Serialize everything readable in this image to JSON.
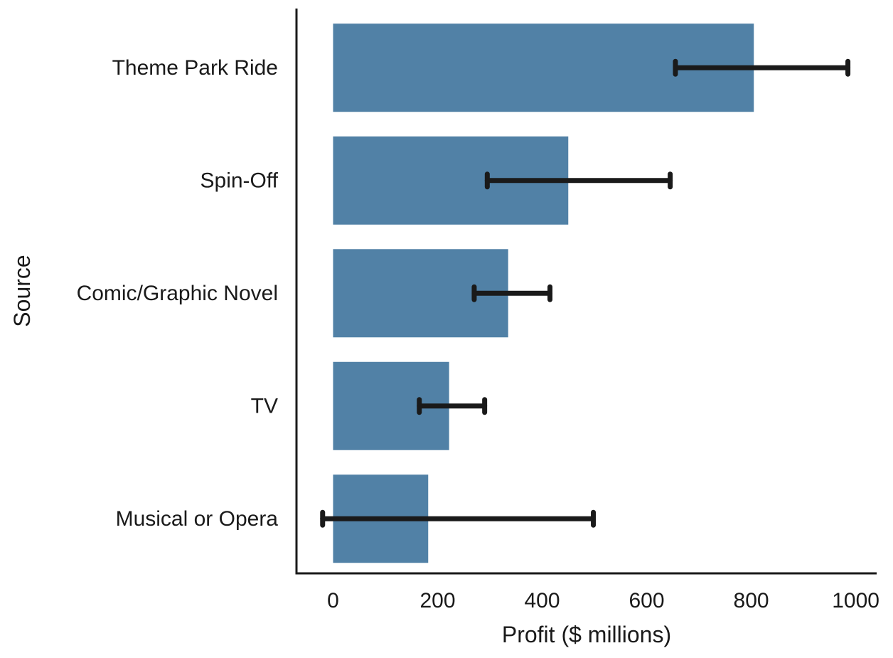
{
  "chart_data": {
    "type": "bar",
    "orientation": "horizontal",
    "title": "",
    "xlabel": "Profit ($ millions)",
    "ylabel": "Source",
    "xlim": [
      -70,
      1040
    ],
    "xticks": [
      0,
      200,
      400,
      600,
      800,
      1000
    ],
    "grid": false,
    "legend": "none",
    "bar_color": "#5181a6",
    "errorbar_color": "#1a1a1a",
    "categories": [
      "Theme Park Ride",
      "Spin-Off",
      "Comic/Graphic Novel",
      "TV",
      "Musical or Opera"
    ],
    "values": [
      805,
      450,
      335,
      222,
      182
    ],
    "error_low": [
      655,
      295,
      270,
      165,
      -20
    ],
    "error_high": [
      985,
      645,
      415,
      290,
      498
    ]
  }
}
